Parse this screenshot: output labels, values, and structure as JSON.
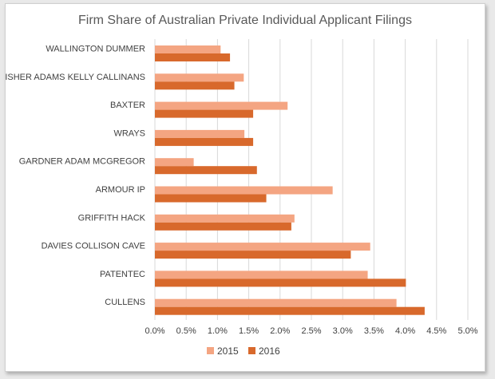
{
  "chart_data": {
    "type": "bar",
    "orientation": "horizontal",
    "title": "Firm Share of Australian Private Individual Applicant Filings",
    "categories": [
      "WALLINGTON DUMMER",
      "FISHER ADAMS KELLY CALLINANS",
      "BAXTER",
      "WRAYS",
      "GARDNER ADAM MCGREGOR",
      "ARMOUR IP",
      "GRIFFITH HACK",
      "DAVIES COLLISON CAVE",
      "PATENTEC",
      "CULLENS"
    ],
    "series": [
      {
        "name": "2015",
        "color": "#F4A582",
        "values": [
          1.05,
          1.42,
          2.12,
          1.43,
          0.62,
          2.84,
          2.23,
          3.44,
          3.4,
          3.86
        ]
      },
      {
        "name": "2016",
        "color": "#D8692C",
        "values": [
          1.2,
          1.27,
          1.57,
          1.57,
          1.63,
          1.78,
          2.18,
          3.13,
          4.01,
          4.31
        ]
      }
    ],
    "xlim": [
      0,
      5
    ],
    "ticks": [
      "0.0%",
      "0.5%",
      "1.0%",
      "1.5%",
      "2.0%",
      "2.5%",
      "3.0%",
      "3.5%",
      "4.0%",
      "4.5%",
      "5.0%"
    ],
    "grid": true,
    "legend_position": "bottom"
  }
}
